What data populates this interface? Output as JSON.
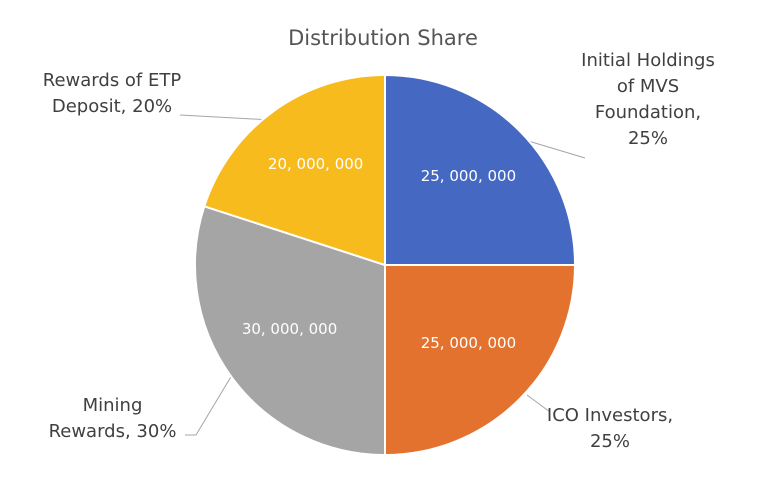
{
  "chart_data": {
    "type": "pie",
    "title": "Distribution  Share",
    "categories": [
      "Initial Holdings of MVS Foundation, 25%",
      "ICO Investors, 25%",
      "Mining Rewards, 30%",
      "Rewards of ETP Deposit, 20%"
    ],
    "values": [
      25000000,
      25000000,
      30000000,
      20000000
    ],
    "value_labels": [
      "25, 000, 000",
      "25, 000, 000",
      "30, 000, 000",
      "20, 000, 000"
    ],
    "colors": [
      "#4569c2",
      "#e4722f",
      "#a5a5a5",
      "#f7bb1e"
    ]
  }
}
